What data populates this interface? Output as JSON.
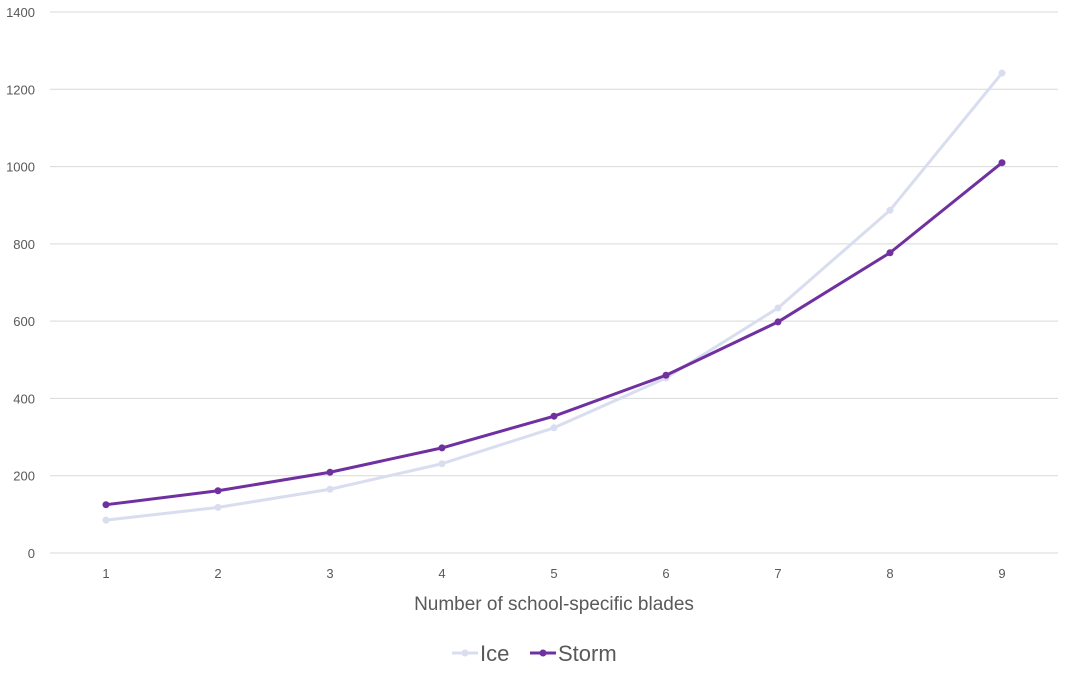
{
  "chart_data": {
    "type": "line",
    "title": "",
    "xlabel": "Number of school-specific blades",
    "ylabel": "",
    "x": [
      1,
      2,
      3,
      4,
      5,
      6,
      7,
      8,
      9
    ],
    "ylim": [
      0,
      1400
    ],
    "yticks": [
      0,
      200,
      400,
      600,
      800,
      1000,
      1200,
      1400
    ],
    "grid": true,
    "legend_position": "bottom",
    "series": [
      {
        "name": "Ice",
        "color": "#d9ddf0",
        "values": [
          85,
          118,
          165,
          231,
          324,
          453,
          634,
          887,
          1242
        ]
      },
      {
        "name": "Storm",
        "color": "#7030a0",
        "values": [
          125,
          161,
          209,
          272,
          354,
          460,
          598,
          777,
          1010
        ]
      }
    ]
  }
}
